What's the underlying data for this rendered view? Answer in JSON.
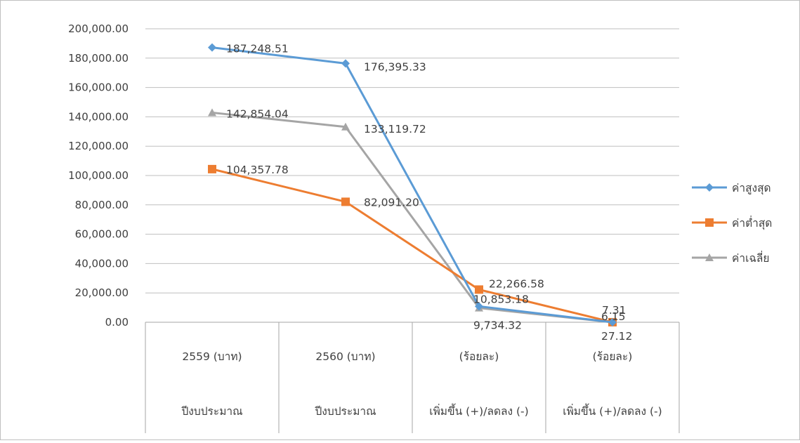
{
  "chart_data": {
    "type": "line",
    "title": "",
    "xlabel": "",
    "ylabel": "",
    "ylim": [
      0,
      200000
    ],
    "ytick_step": 20000,
    "ytick_labels": [
      "0.00",
      "20,000.00",
      "40,000.00",
      "60,000.00",
      "80,000.00",
      "100,000.00",
      "120,000.00",
      "140,000.00",
      "160,000.00",
      "180,000.00",
      "200,000.00"
    ],
    "grid": true,
    "legend_position": "right",
    "categories": [
      {
        "line1": "2559 (บาท)",
        "line2": "ปีงบประมาณ"
      },
      {
        "line1": "2560 (บาท)",
        "line2": "ปีงบประมาณ"
      },
      {
        "line1": "(ร้อยละ)",
        "line2": "เพิ่มขึ้น (+)/ลดลง (-)"
      },
      {
        "line1": "(ร้อยละ)",
        "line2": "เพิ่มขึ้น (+)/ลดลง (-)"
      }
    ],
    "series": [
      {
        "name": "ค่าสูงสุด",
        "marker": "diamond",
        "color": "#5B9BD5",
        "values": [
          187248.51,
          176395.33,
          10853.18,
          6.15
        ],
        "labels": [
          "187,248.51",
          "176,395.33",
          "10,853.18",
          "6.15"
        ]
      },
      {
        "name": "ค่าต่ำสุด",
        "marker": "square",
        "color": "#ED7D31",
        "values": [
          104357.78,
          82091.2,
          22266.58,
          27.12
        ],
        "labels": [
          "104,357.78",
          "82,091.20",
          "22,266.58",
          "27.12"
        ]
      },
      {
        "name": "ค่าเฉลี่ย",
        "marker": "triangle",
        "color": "#A5A5A5",
        "values": [
          142854.04,
          133119.72,
          9734.32,
          7.31
        ],
        "labels": [
          "142,854.04",
          "133,119.72",
          "9,734.32",
          "7.31"
        ]
      }
    ]
  }
}
